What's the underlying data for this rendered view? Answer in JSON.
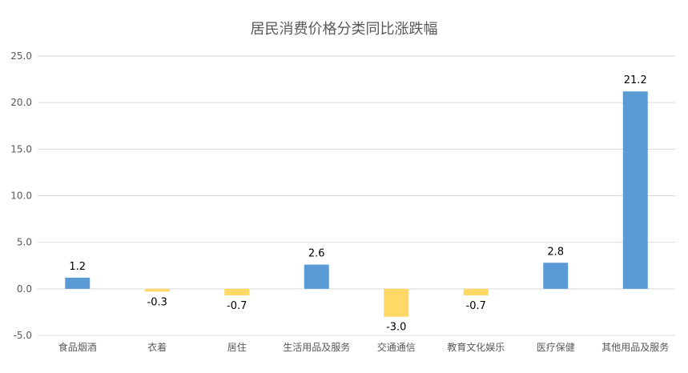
{
  "chart_data": {
    "type": "bar",
    "title": "居民消费价格分类同比涨跌幅",
    "categories": [
      "食品烟酒",
      "衣着",
      "居住",
      "生活用品及服务",
      "交通通信",
      "教育文化娱乐",
      "医疗保健",
      "其他用品及服务"
    ],
    "values": [
      1.2,
      -0.3,
      -0.7,
      2.6,
      -3.0,
      -0.7,
      2.8,
      21.2
    ],
    "data_labels": [
      "1.2",
      "-0.3",
      "-0.7",
      "2.6",
      "-3.0",
      "-0.7",
      "2.8",
      "21.2"
    ],
    "ylim": [
      -5,
      25
    ],
    "yticks": [
      25,
      20,
      15,
      10,
      5,
      0,
      -5
    ],
    "ytick_labels": [
      "25.0",
      "20.0",
      "15.0",
      "10.0",
      "5.0",
      "0.0",
      "-5.0"
    ],
    "grid": true,
    "legend": "none",
    "colors": {
      "positive": "#5B9BD5",
      "negative": "#FFD966",
      "grid": "#D9D9D9",
      "axis_text": "#595959"
    }
  }
}
